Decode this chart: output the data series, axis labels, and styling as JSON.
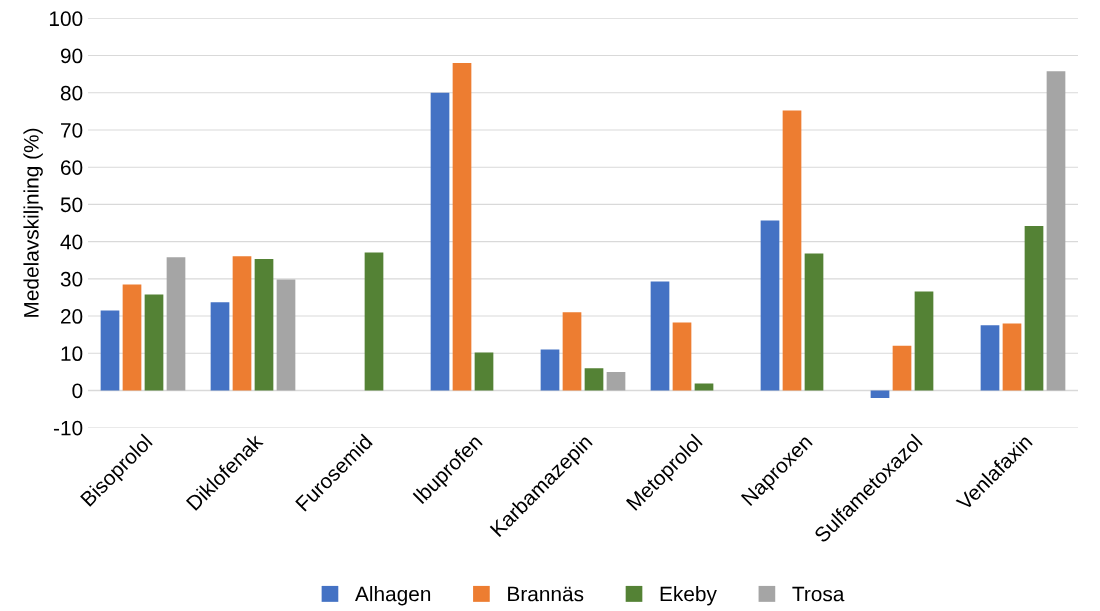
{
  "chart_data": {
    "type": "bar",
    "ylabel": "Medelavskiljning (%)",
    "categories": [
      "Bisoprolol",
      "Diklofenak",
      "Furosemid",
      "Ibuprofen",
      "Karbamazepin",
      "Metoprolol",
      "Naproxen",
      "Sulfametoxazol",
      "Venlafaxin"
    ],
    "series": [
      {
        "name": "Alhagen",
        "color": "#4472c4",
        "values": [
          21.5,
          23.7,
          null,
          80,
          11,
          29.3,
          45.7,
          -2,
          17.5
        ]
      },
      {
        "name": "Brannäs",
        "color": "#ed7d31",
        "values": [
          28.5,
          36.1,
          null,
          88,
          21,
          18.3,
          75.2,
          12,
          18
        ]
      },
      {
        "name": "Ekeby",
        "color": "#548235",
        "values": [
          25.8,
          35.3,
          37.1,
          10.2,
          6,
          1.9,
          36.8,
          26.6,
          44.2
        ]
      },
      {
        "name": "Trosa",
        "color": "#a5a5a5",
        "values": [
          35.8,
          29.8,
          null,
          null,
          5,
          null,
          null,
          null,
          85.8
        ]
      }
    ],
    "ylim": [
      -10,
      100
    ],
    "yticks": [
      -10,
      0,
      10,
      20,
      30,
      40,
      50,
      60,
      70,
      80,
      90,
      100
    ],
    "grid": "y",
    "legend": "bottom"
  }
}
